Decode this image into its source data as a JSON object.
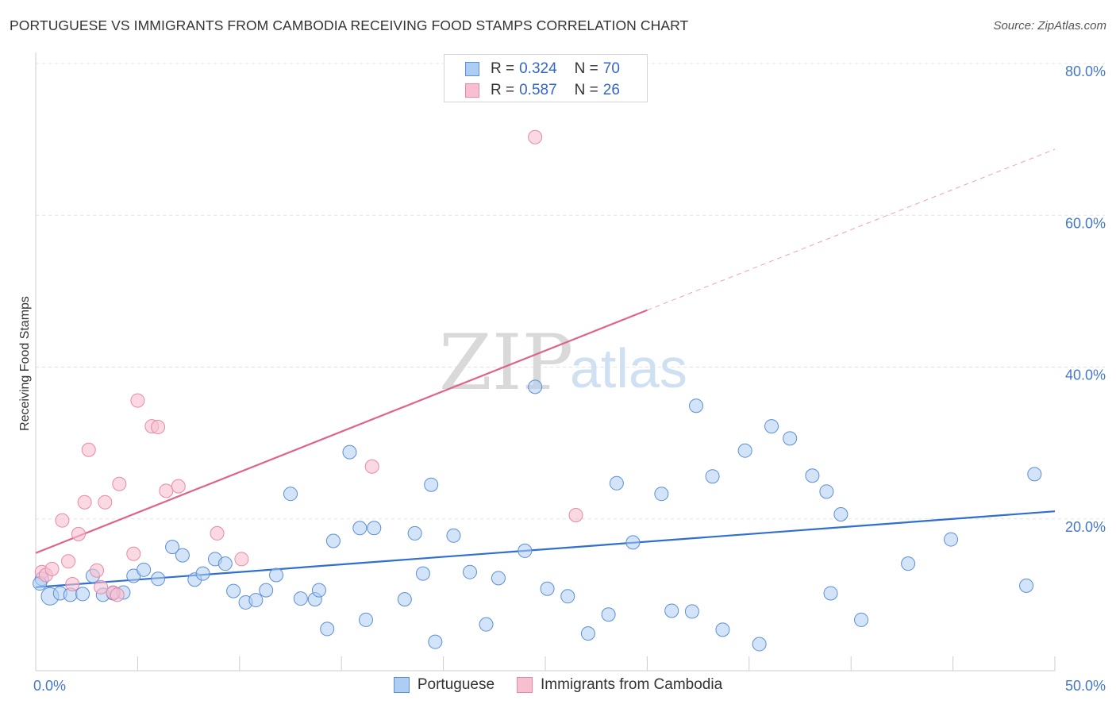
{
  "title": "PORTUGUESE VS IMMIGRANTS FROM CAMBODIA RECEIVING FOOD STAMPS CORRELATION CHART",
  "source": "Source: ZipAtlas.com",
  "watermark": {
    "zip": "ZIP",
    "atlas": "atlas"
  },
  "legend_top": {
    "rows": [
      {
        "r_label": "R =",
        "r_value": "0.324",
        "n_label": "N =",
        "n_value": "70"
      },
      {
        "r_label": "R =",
        "r_value": "0.587",
        "n_label": "N =",
        "n_value": "26"
      }
    ]
  },
  "legend_bottom": [
    "Portuguese",
    "Immigrants from Cambodia"
  ],
  "colors": {
    "portuguese_fill": "#aecdf3",
    "portuguese_stroke": "#5b8fd6",
    "portuguese_line": "#2f6fcf",
    "cambodia_fill": "#f7bfd0",
    "cambodia_stroke": "#e68aa6",
    "cambodia_line": "#e0638c",
    "tick_text": "#4477cc",
    "grid": "#e3e3e3"
  },
  "chart_data": {
    "type": "scatter",
    "title": "PORTUGUESE VS IMMIGRANTS FROM CAMBODIA RECEIVING FOOD STAMPS CORRELATION CHART",
    "xlabel": "",
    "ylabel": "Receiving Food Stamps",
    "xlim": [
      0,
      50
    ],
    "ylim": [
      0,
      80
    ],
    "x_tick_labels": [
      "0.0%",
      "50.0%"
    ],
    "y_ticks": [
      20,
      40,
      60,
      80
    ],
    "y_tick_labels": [
      "20.0%",
      "40.0%",
      "60.0%",
      "80.0%"
    ],
    "grid": true,
    "legend_position": "top-center",
    "series": [
      {
        "name": "Portuguese",
        "R": 0.324,
        "N": 70,
        "trend": {
          "x": [
            0,
            50
          ],
          "y": [
            11.0,
            21.0
          ],
          "style": "solid"
        },
        "points": [
          [
            0.3,
            12.1
          ],
          [
            0.7,
            9.8
          ],
          [
            1.2,
            10.2
          ],
          [
            1.7,
            10.0
          ],
          [
            2.3,
            10.1
          ],
          [
            2.8,
            12.5
          ],
          [
            3.3,
            10.0
          ],
          [
            3.8,
            10.2
          ],
          [
            4.3,
            10.3
          ],
          [
            4.8,
            12.5
          ],
          [
            5.3,
            13.3
          ],
          [
            6.0,
            12.1
          ],
          [
            6.7,
            16.3
          ],
          [
            7.2,
            15.2
          ],
          [
            7.8,
            12.0
          ],
          [
            8.2,
            12.8
          ],
          [
            8.8,
            14.7
          ],
          [
            9.3,
            14.1
          ],
          [
            9.7,
            10.5
          ],
          [
            10.3,
            9.0
          ],
          [
            10.8,
            9.3
          ],
          [
            11.3,
            10.6
          ],
          [
            11.8,
            12.6
          ],
          [
            12.5,
            23.3
          ],
          [
            13.0,
            9.5
          ],
          [
            13.7,
            9.4
          ],
          [
            13.9,
            10.6
          ],
          [
            14.3,
            5.5
          ],
          [
            14.6,
            17.1
          ],
          [
            15.4,
            28.8
          ],
          [
            15.9,
            18.8
          ],
          [
            16.2,
            6.7
          ],
          [
            16.6,
            18.8
          ],
          [
            18.1,
            9.4
          ],
          [
            18.6,
            18.1
          ],
          [
            19.0,
            12.8
          ],
          [
            19.4,
            24.5
          ],
          [
            19.6,
            3.8
          ],
          [
            20.5,
            17.8
          ],
          [
            21.3,
            13.0
          ],
          [
            22.1,
            6.1
          ],
          [
            22.7,
            12.2
          ],
          [
            24.0,
            15.8
          ],
          [
            24.5,
            37.4
          ],
          [
            25.1,
            10.8
          ],
          [
            26.1,
            9.8
          ],
          [
            27.1,
            4.9
          ],
          [
            28.1,
            7.4
          ],
          [
            28.5,
            24.7
          ],
          [
            29.3,
            16.9
          ],
          [
            30.7,
            23.3
          ],
          [
            31.2,
            7.9
          ],
          [
            32.2,
            7.8
          ],
          [
            32.4,
            34.9
          ],
          [
            33.2,
            25.6
          ],
          [
            33.7,
            5.4
          ],
          [
            34.8,
            29.0
          ],
          [
            35.5,
            3.5
          ],
          [
            36.1,
            32.2
          ],
          [
            37.0,
            30.6
          ],
          [
            38.1,
            25.7
          ],
          [
            38.8,
            23.6
          ],
          [
            39.0,
            10.2
          ],
          [
            39.5,
            20.6
          ],
          [
            40.5,
            6.7
          ],
          [
            42.8,
            14.1
          ],
          [
            44.9,
            17.3
          ],
          [
            48.6,
            11.2
          ],
          [
            49.0,
            25.9
          ],
          [
            0.2,
            11.5
          ]
        ]
      },
      {
        "name": "Immigrants from Cambodia",
        "R": 0.587,
        "N": 26,
        "trend": {
          "x": [
            0,
            30
          ],
          "y": [
            15.5,
            47.5
          ],
          "style": "solid",
          "extension": {
            "x": [
              30,
              50
            ],
            "y": [
              47.5,
              68.7
            ],
            "style": "dashed"
          }
        },
        "points": [
          [
            0.3,
            13.0
          ],
          [
            0.5,
            12.6
          ],
          [
            0.8,
            13.4
          ],
          [
            1.3,
            19.8
          ],
          [
            1.6,
            14.4
          ],
          [
            1.8,
            11.4
          ],
          [
            2.1,
            18.0
          ],
          [
            2.4,
            22.2
          ],
          [
            2.6,
            29.1
          ],
          [
            3.0,
            13.2
          ],
          [
            3.2,
            11.0
          ],
          [
            3.4,
            22.2
          ],
          [
            3.8,
            10.3
          ],
          [
            4.0,
            10.0
          ],
          [
            4.1,
            24.6
          ],
          [
            4.8,
            15.4
          ],
          [
            5.0,
            35.6
          ],
          [
            5.7,
            32.2
          ],
          [
            6.0,
            32.1
          ],
          [
            6.4,
            23.7
          ],
          [
            7.0,
            24.3
          ],
          [
            8.9,
            18.1
          ],
          [
            10.1,
            14.7
          ],
          [
            16.5,
            26.9
          ],
          [
            24.5,
            70.3
          ],
          [
            26.5,
            20.5
          ]
        ]
      }
    ]
  }
}
